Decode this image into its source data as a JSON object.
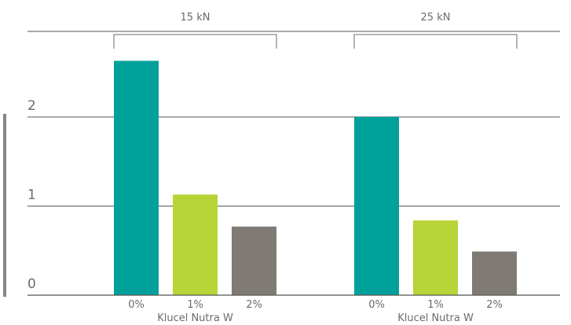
{
  "chart_data": {
    "type": "bar",
    "groups": [
      {
        "label": "15 kN",
        "categories": [
          "0%",
          "1%",
          "2%"
        ],
        "values": [
          2.63,
          1.13,
          0.77
        ],
        "colors": [
          "#00A19A",
          "#B8D538",
          "#7F7B74"
        ],
        "xlabel": "Klucel Nutra W"
      },
      {
        "label": "25 kN",
        "categories": [
          "0%",
          "1%",
          "2%"
        ],
        "values": [
          2.0,
          0.84,
          0.49
        ],
        "colors": [
          "#00A19A",
          "#B8D538",
          "#7F7B74"
        ],
        "xlabel": "Klucel Nutra W"
      }
    ],
    "yticks": [
      "0",
      "1",
      "2"
    ],
    "ylim": [
      0,
      3
    ],
    "grid": true
  }
}
